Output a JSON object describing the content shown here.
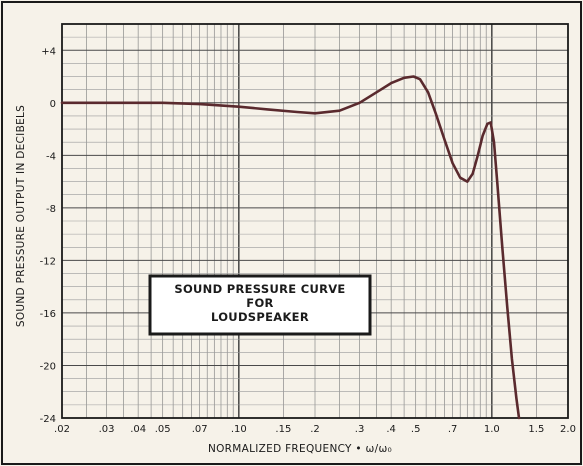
{
  "chart_data": {
    "type": "line",
    "title": "",
    "xlabel": "NORMALIZED FREQUENCY • ω/ω₀",
    "ylabel": "SOUND PRESSURE OUTPUT IN DECIBELS",
    "x_scale": "log",
    "xlim": [
      0.02,
      2.0
    ],
    "ylim": [
      -24,
      6
    ],
    "grid": true,
    "x_ticks": [
      {
        "value": 0.02,
        "label": ".02"
      },
      {
        "value": 0.03,
        "label": ".03"
      },
      {
        "value": 0.04,
        "label": ".04"
      },
      {
        "value": 0.05,
        "label": ".05"
      },
      {
        "value": 0.07,
        "label": ".07"
      },
      {
        "value": 0.1,
        "label": ".10"
      },
      {
        "value": 0.15,
        "label": ".15"
      },
      {
        "value": 0.2,
        "label": ".2"
      },
      {
        "value": 0.3,
        "label": ".3"
      },
      {
        "value": 0.4,
        "label": ".4"
      },
      {
        "value": 0.5,
        "label": ".5"
      },
      {
        "value": 0.7,
        "label": ".7"
      },
      {
        "value": 1.0,
        "label": "1.0"
      },
      {
        "value": 1.5,
        "label": "1.5"
      },
      {
        "value": 2.0,
        "label": "2.0"
      }
    ],
    "y_ticks": [
      {
        "value": 4,
        "label": "+4"
      },
      {
        "value": 0,
        "label": "0"
      },
      {
        "value": -4,
        "label": "-4"
      },
      {
        "value": -8,
        "label": "-8"
      },
      {
        "value": -12,
        "label": "-12"
      },
      {
        "value": -16,
        "label": "-16"
      },
      {
        "value": -20,
        "label": "-20"
      },
      {
        "value": -24,
        "label": "-24"
      }
    ],
    "annotation": [
      "SOUND PRESSURE CURVE",
      "FOR",
      "LOUDSPEAKER"
    ],
    "series": [
      {
        "color": "#5a2a2e",
        "x": [
          0.02,
          0.03,
          0.05,
          0.07,
          0.1,
          0.13,
          0.17,
          0.2,
          0.25,
          0.3,
          0.35,
          0.4,
          0.45,
          0.49,
          0.52,
          0.56,
          0.6,
          0.65,
          0.7,
          0.75,
          0.8,
          0.84,
          0.88,
          0.92,
          0.96,
          0.99,
          1.02,
          1.05,
          1.1,
          1.15,
          1.2,
          1.25,
          1.28
        ],
        "y": [
          0,
          0,
          0,
          -0.1,
          -0.3,
          -0.5,
          -0.7,
          -0.8,
          -0.6,
          0,
          0.8,
          1.5,
          1.9,
          2.0,
          1.8,
          0.8,
          -0.8,
          -2.8,
          -4.6,
          -5.7,
          -6.0,
          -5.4,
          -4.0,
          -2.5,
          -1.6,
          -1.5,
          -3.0,
          -6.0,
          -11.0,
          -15.5,
          -19.5,
          -22.5,
          -24.0
        ]
      }
    ]
  }
}
